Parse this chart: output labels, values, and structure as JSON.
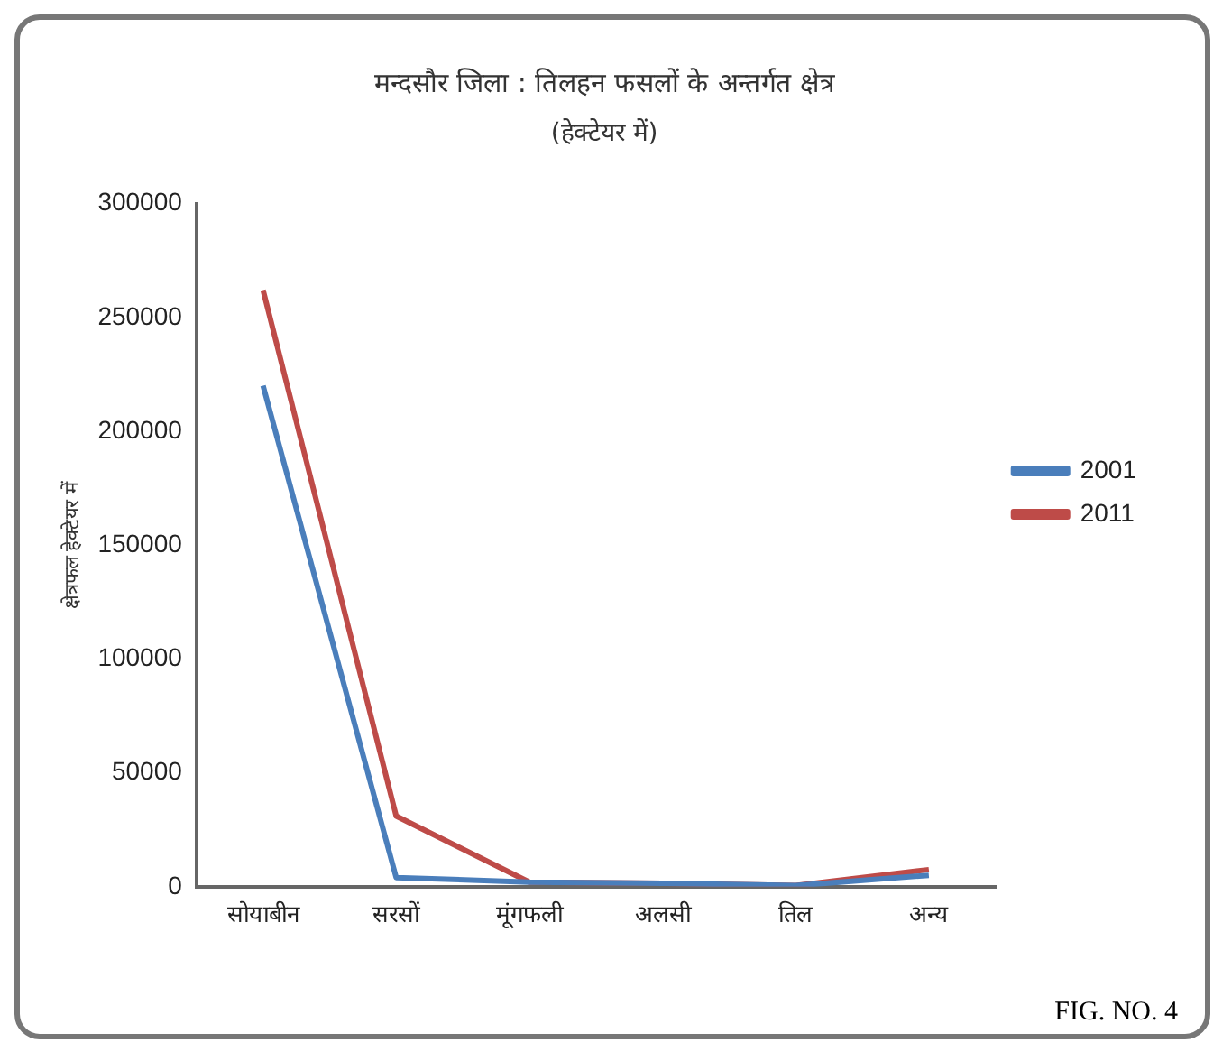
{
  "chart_data": {
    "type": "line",
    "title": "मन्दसौर जिला : तिलहन फसलों के अन्तर्गत क्षेत्र",
    "subtitle": "(हेक्टेयर में)",
    "ylabel": "क्षेत्रफल हेक्टेयर में",
    "categories": [
      "सोयाबीन",
      "सरसों",
      "मूंगफली",
      "अलसी",
      "तिल",
      "अन्य"
    ],
    "series": [
      {
        "name": "2001",
        "color": "#4a7ebb",
        "values": [
          220000,
          4000,
          2000,
          1500,
          500,
          5000
        ]
      },
      {
        "name": "2011",
        "color": "#be4b48",
        "values": [
          262000,
          31000,
          2000,
          1500,
          500,
          7500
        ]
      }
    ],
    "ylim": [
      0,
      300000
    ],
    "yticks": [
      0,
      50000,
      100000,
      150000,
      200000,
      250000,
      300000
    ],
    "grid": false,
    "legend": "right",
    "marker": "none",
    "line_style": "solid",
    "annotations": [
      "FIG. NO. 4"
    ]
  }
}
